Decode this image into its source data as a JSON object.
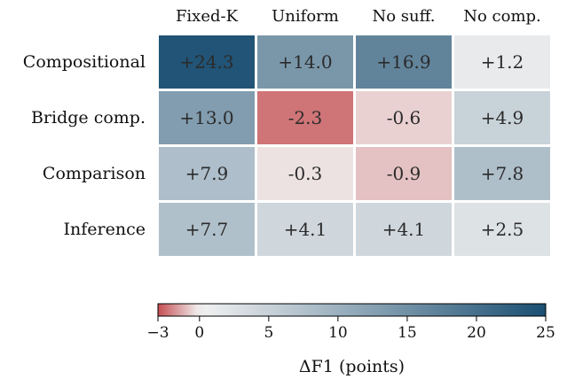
{
  "chart_data": {
    "type": "heatmap",
    "columns": [
      "Fixed-K",
      "Uniform",
      "No suff.",
      "No comp."
    ],
    "rows": [
      "Compositional",
      "Bridge comp.",
      "Comparison",
      "Inference"
    ],
    "values": [
      [
        24.3,
        14.0,
        16.9,
        1.2
      ],
      [
        13.0,
        -2.3,
        -0.6,
        4.9
      ],
      [
        7.9,
        -0.3,
        -0.9,
        7.8
      ],
      [
        7.7,
        4.1,
        4.1,
        2.5
      ]
    ],
    "cell_labels": [
      [
        "+24.3",
        "+14.0",
        "+16.9",
        "+1.2"
      ],
      [
        "+13.0",
        "-2.3",
        "-0.6",
        "+4.9"
      ],
      [
        "+7.9",
        "-0.3",
        "-0.9",
        "+7.8"
      ],
      [
        "+7.7",
        "+4.1",
        "+4.1",
        "+2.5"
      ]
    ],
    "colorbar": {
      "range": [
        -3,
        25
      ],
      "center": 0,
      "ticks": [
        -3,
        0,
        5,
        10,
        15,
        20,
        25
      ],
      "tick_labels": [
        "−3",
        "0",
        "5",
        "10",
        "15",
        "20",
        "25"
      ],
      "label": "ΔF1 (points)",
      "negative_color": "#c44e52",
      "neutral_color": "#f2f2f2",
      "positive_color": "#1b4f72"
    },
    "grid": false,
    "legend": "bottom"
  }
}
